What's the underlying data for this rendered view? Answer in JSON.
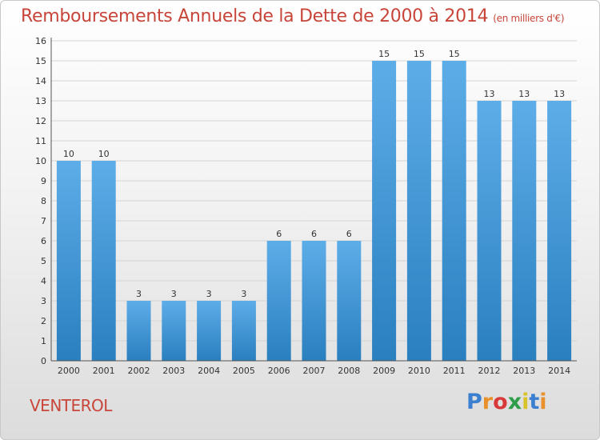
{
  "header": {
    "title": "Remboursements Annuels de la Dette de 2000 à 2014",
    "unit": "(en milliers d'€)"
  },
  "footer": {
    "commune": "VENTEROL",
    "logo": "Proxiti"
  },
  "colors": {
    "bar_top": "#5dade8",
    "bar_bottom": "#2a7fbf",
    "title": "#c8453a"
  },
  "chart_data": {
    "type": "bar",
    "title": "Remboursements Annuels de la Dette de 2000 à 2014",
    "xlabel": "",
    "ylabel": "",
    "categories": [
      "2000",
      "2001",
      "2002",
      "2003",
      "2004",
      "2005",
      "2006",
      "2007",
      "2008",
      "2009",
      "2010",
      "2011",
      "2012",
      "2013",
      "2014"
    ],
    "values": [
      10,
      10,
      3,
      3,
      3,
      3,
      6,
      6,
      6,
      15,
      15,
      15,
      13,
      13,
      13
    ],
    "ylim": [
      0,
      16
    ],
    "yticks": [
      0,
      1,
      2,
      3,
      4,
      5,
      6,
      7,
      8,
      9,
      10,
      11,
      12,
      13,
      14,
      15,
      16
    ],
    "grid": true
  }
}
